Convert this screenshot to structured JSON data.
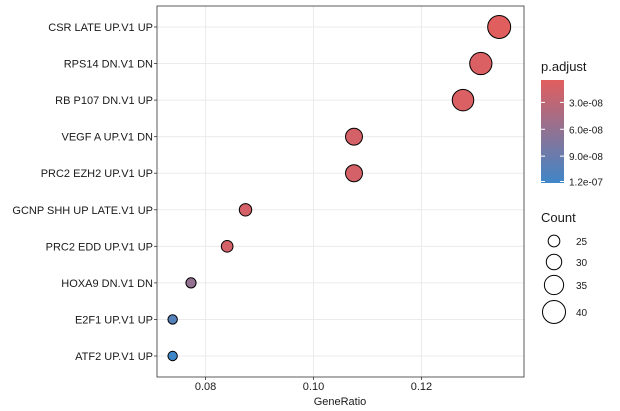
{
  "chart_data": {
    "type": "scatter",
    "title": "",
    "xlabel": "GeneRatio",
    "ylabel": "",
    "xlim": [
      0.071,
      0.139
    ],
    "x_ticks": [
      0.08,
      0.1,
      0.12
    ],
    "x_tick_labels": [
      "0.08",
      "0.10",
      "0.12"
    ],
    "categories": [
      "CSR LATE UP.V1 UP",
      "RPS14 DN.V1 DN",
      "RB P107 DN.V1 UP",
      "VEGF A UP.V1 DN",
      "PRC2 EZH2 UP.V1 UP",
      "GCNP SHH UP LATE.V1 UP",
      "PRC2 EDD UP.V1 UP",
      "HOXA9 DN.V1 DN",
      "E2F1 UP.V1 UP",
      "ATF2 UP.V1 UP"
    ],
    "points": [
      {
        "term": "CSR LATE UP.V1 UP",
        "gene_ratio": 0.1344,
        "count": 40,
        "p_adjust": 5e-09
      },
      {
        "term": "RPS14 DN.V1 DN",
        "gene_ratio": 0.131,
        "count": 39,
        "p_adjust": 1e-08
      },
      {
        "term": "RB P107 DN.V1 UP",
        "gene_ratio": 0.1277,
        "count": 38,
        "p_adjust": 1e-08
      },
      {
        "term": "VEGF A UP.V1 DN",
        "gene_ratio": 0.1075,
        "count": 32,
        "p_adjust": 1.5e-08
      },
      {
        "term": "PRC2 EZH2 UP.V1 UP",
        "gene_ratio": 0.1075,
        "count": 32,
        "p_adjust": 1.5e-08
      },
      {
        "term": "GCNP SHH UP LATE.V1 UP",
        "gene_ratio": 0.0874,
        "count": 26,
        "p_adjust": 1.5e-08
      },
      {
        "term": "PRC2 EDD UP.V1 UP",
        "gene_ratio": 0.084,
        "count": 25,
        "p_adjust": 1.5e-08
      },
      {
        "term": "HOXA9 DN.V1 DN",
        "gene_ratio": 0.0773,
        "count": 23,
        "p_adjust": 6e-08
      },
      {
        "term": "E2F1 UP.V1 UP",
        "gene_ratio": 0.0739,
        "count": 22,
        "p_adjust": 1.05e-07
      },
      {
        "term": "ATF2 UP.V1 UP",
        "gene_ratio": 0.0739,
        "count": 22,
        "p_adjust": 1.2e-07
      }
    ],
    "legend": {
      "color": {
        "title": "p.adjust",
        "range": [
          5e-09,
          1.2e-07
        ],
        "low_color": "#E15E5E",
        "high_color": "#3F86C8",
        "ticks": [
          3e-08,
          6e-08,
          9e-08,
          1.2e-07
        ],
        "tick_labels": [
          "3.0e-08",
          "6.0e-08",
          "9.0e-08",
          "1.2e-07"
        ]
      },
      "size": {
        "title": "Count",
        "values": [
          25,
          30,
          35,
          40
        ],
        "labels": [
          "25",
          "30",
          "35",
          "40"
        ]
      },
      "placement": "right"
    },
    "grid": true
  },
  "colors": {
    "panel_background": "#ffffff",
    "grid": "#ebebeb",
    "point_outline": "#000000",
    "text": "#1a1a1a"
  }
}
